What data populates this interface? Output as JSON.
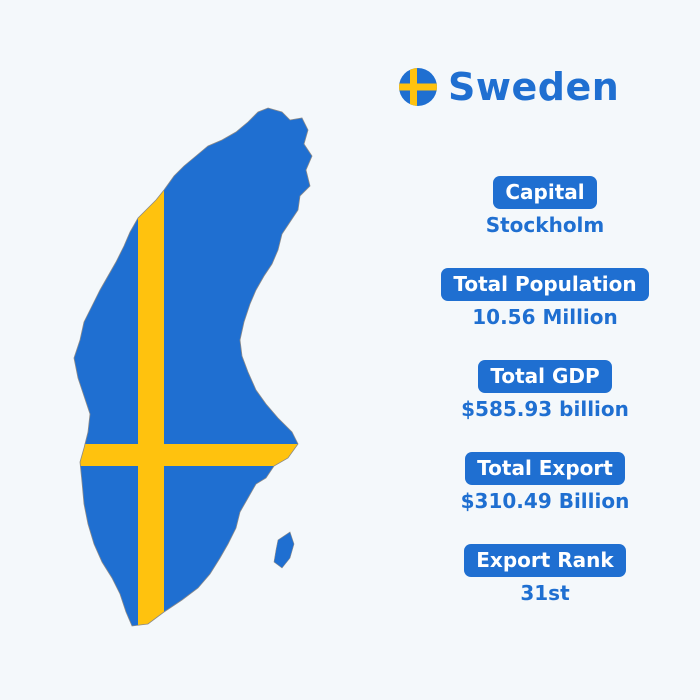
{
  "header": {
    "country": "Sweden",
    "flag_icon": "sweden-flag-icon"
  },
  "map": {
    "icon": "sweden-map-icon",
    "fill_color": "#1f6fd1",
    "cross_color": "#ffc20e"
  },
  "stats": [
    {
      "label": "Capital",
      "value": "Stockholm"
    },
    {
      "label": "Total Population",
      "value": "10.56 Million"
    },
    {
      "label": "Total GDP",
      "value": "$585.93 billion"
    },
    {
      "label": "Total Export",
      "value": "$310.49 Billion"
    },
    {
      "label": "Export Rank",
      "value": "31st"
    }
  ],
  "colors": {
    "accent": "#1f6fd1",
    "flag_yellow": "#ffc20e",
    "background": "#f4f8fb"
  }
}
